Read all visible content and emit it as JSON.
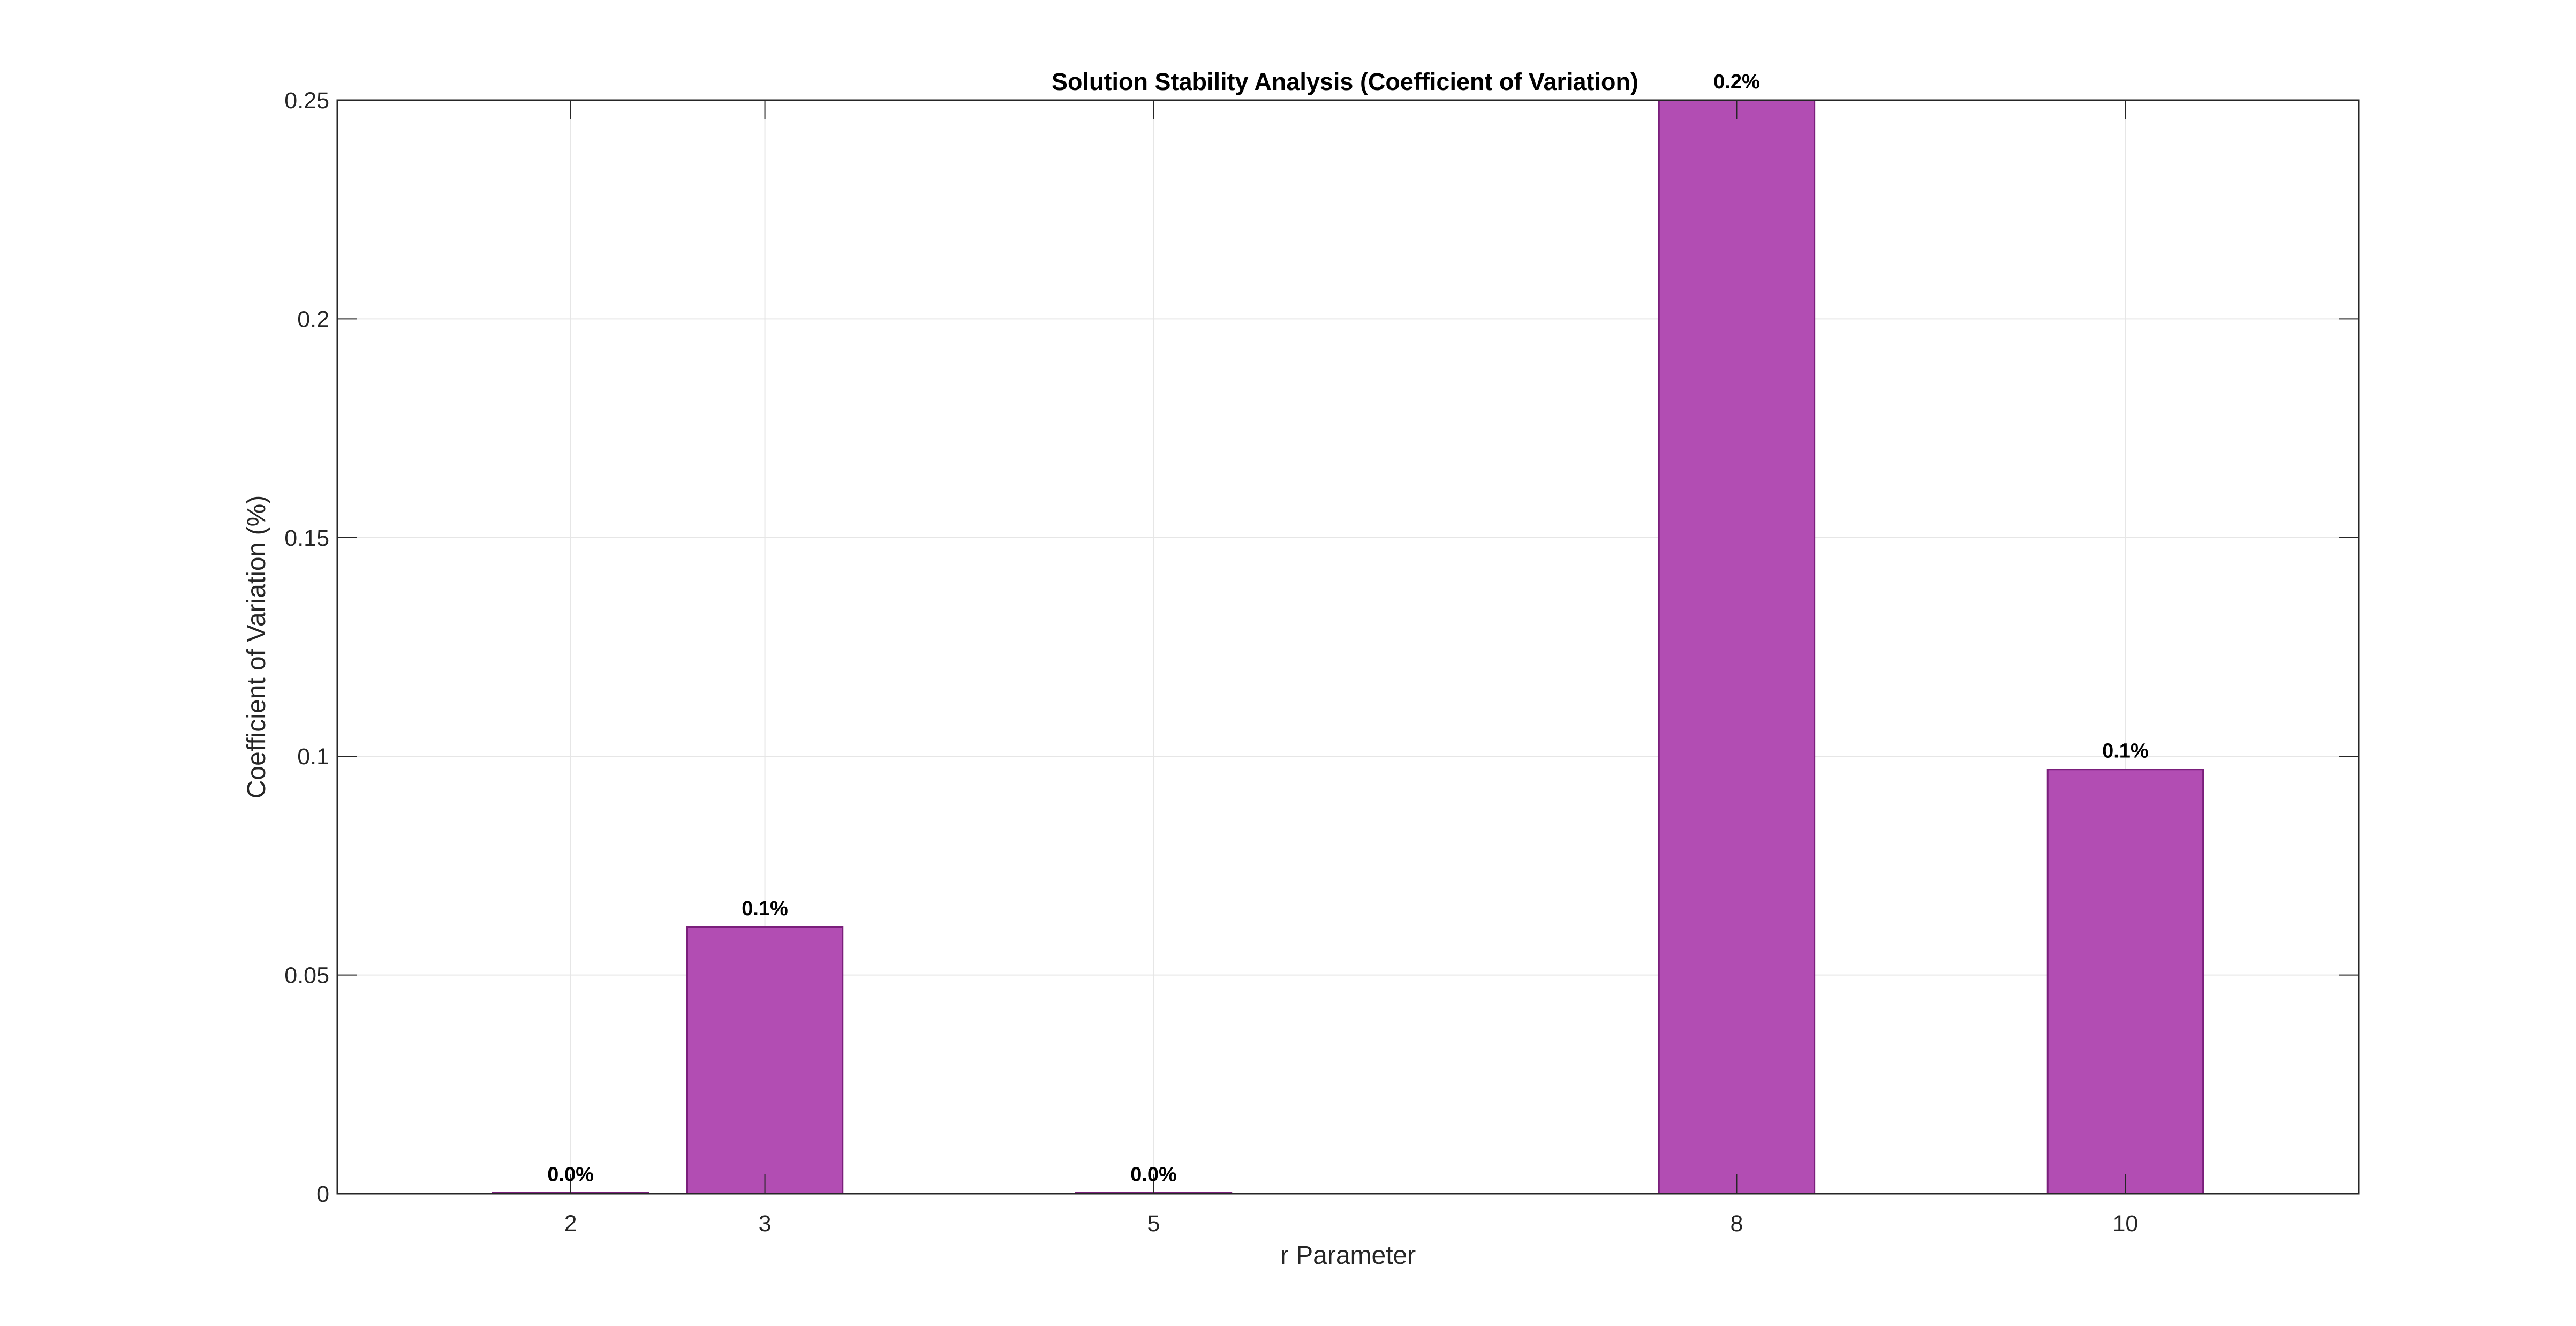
{
  "chart_data": {
    "type": "bar",
    "title": "Solution Stability Analysis (Coefficient of Variation)",
    "xlabel": "r Parameter",
    "ylabel": "Coefficient of Variation (%)",
    "x": [
      2,
      3,
      5,
      8,
      10
    ],
    "x_tick_labels": [
      "2",
      "3",
      "5",
      "8",
      "10"
    ],
    "values": [
      0.0002,
      0.061,
      0.0002,
      0.25,
      0.097
    ],
    "data_labels": [
      "0.0%",
      "0.1%",
      "0.0%",
      "0.2%",
      "0.1%"
    ],
    "xlim": [
      0.8,
      11.2
    ],
    "ylim": [
      0,
      0.25
    ],
    "y_ticks": [
      0,
      0.05,
      0.1,
      0.15,
      0.2,
      0.25
    ],
    "y_tick_labels": [
      "0",
      "0.05",
      "0.1",
      "0.15",
      "0.2",
      "0.25"
    ],
    "bar_width": 0.8,
    "grid": true,
    "colors": {
      "bar_fill": "#b24db3",
      "bar_edge": "#7a1f7b",
      "grid": "#e6e6e6",
      "axes": "#262626"
    }
  }
}
